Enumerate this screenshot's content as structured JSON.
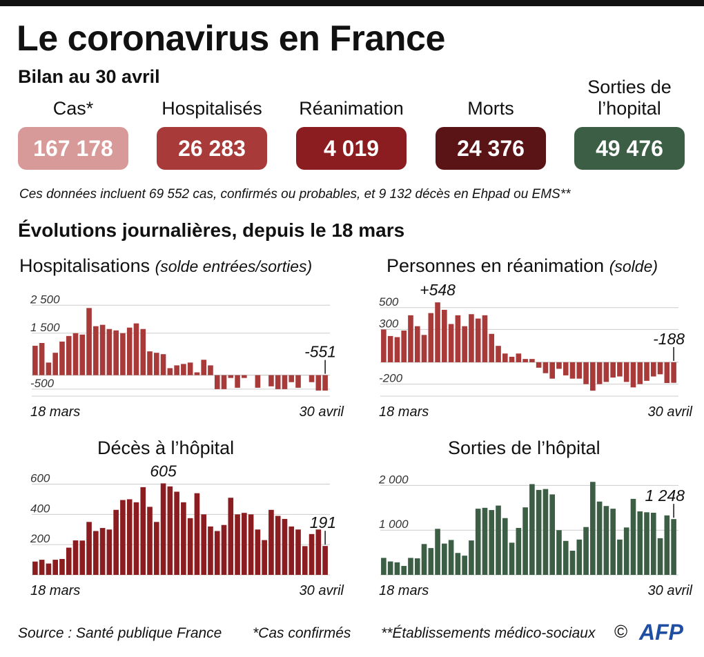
{
  "title": "Le coronavirus en France",
  "subtitle": "Bilan au 30 avril",
  "stats": [
    {
      "label": "Cas*",
      "value": "167 178",
      "color": "#d79a98"
    },
    {
      "label": "Hospitalisés",
      "value": "26 283",
      "color": "#a83a3a"
    },
    {
      "label": "Réanimation",
      "value": "4 019",
      "color": "#8b1c1f"
    },
    {
      "label": "Morts",
      "value": "24 376",
      "color": "#5a1416"
    },
    {
      "label": "Sorties de l’hopital",
      "value": "49 476",
      "color": "#3b5e45"
    }
  ],
  "note": "Ces données incluent 69 552 cas, confirmés ou probables, et 9 132 décès en Ehpad ou EMS**",
  "section_title": "Évolutions journalières, depuis le 18 mars",
  "footer": {
    "source": "Source : Santé publique France",
    "footnote1": "*Cas confirmés",
    "footnote2": "**Établissements médico-sociaux",
    "copyright": "©",
    "logo": "AFP"
  },
  "chart_data": [
    {
      "type": "bar",
      "title": "Hospitalisations",
      "title_note": "(solde entrées/sorties)",
      "color": "#a83a3a",
      "x_start_label": "18 mars",
      "x_end_label": "30 avril",
      "yticks": [
        2500,
        1500,
        -500
      ],
      "ytick_labels": [
        "2 500",
        "1 500",
        "-500"
      ],
      "ylim": [
        -750,
        3000
      ],
      "annotation": {
        "index": 43,
        "text": "-551"
      },
      "values": [
        1050,
        1150,
        450,
        800,
        1200,
        1400,
        1500,
        1450,
        2400,
        1750,
        1800,
        1650,
        1600,
        1500,
        1700,
        1850,
        1650,
        850,
        800,
        750,
        250,
        350,
        400,
        450,
        100,
        550,
        350,
        -500,
        -500,
        -100,
        -450,
        -100,
        0,
        -450,
        0,
        -400,
        -500,
        -500,
        -250,
        -450,
        0,
        -250,
        -550,
        -551
      ]
    },
    {
      "type": "bar",
      "title": "Personnes en réanimation",
      "title_note": "(solde)",
      "color": "#a83a3a",
      "x_start_label": "18 mars",
      "x_end_label": "30 avril",
      "yticks": [
        500,
        300,
        -200
      ],
      "ytick_labels": [
        "500",
        "300",
        "-200"
      ],
      "ylim": [
        -310,
        650
      ],
      "annotation_max": {
        "index": 8,
        "text": "+548"
      },
      "annotation": {
        "index": 43,
        "text": "-188"
      },
      "values": [
        300,
        240,
        230,
        290,
        430,
        330,
        250,
        450,
        548,
        480,
        350,
        430,
        330,
        440,
        400,
        430,
        260,
        150,
        80,
        50,
        80,
        30,
        30,
        -50,
        -100,
        -150,
        -60,
        -120,
        -150,
        -150,
        -200,
        -260,
        -200,
        -180,
        -140,
        -130,
        -180,
        -230,
        -200,
        -170,
        -130,
        -110,
        -190,
        -188
      ]
    },
    {
      "type": "bar",
      "title": "Décès à l’hôpital",
      "title_note": "",
      "color": "#8b1c1f",
      "x_start_label": "18 mars",
      "x_end_label": "30 avril",
      "yticks": [
        600,
        400,
        200
      ],
      "ytick_labels": [
        "600",
        "400",
        "200"
      ],
      "ylim": [
        0,
        680
      ],
      "annotation_max": {
        "index": 19,
        "text": "605"
      },
      "annotation": {
        "index": 43,
        "text": "191"
      },
      "values": [
        88,
        100,
        75,
        100,
        105,
        180,
        228,
        227,
        350,
        290,
        310,
        300,
        430,
        495,
        500,
        480,
        580,
        450,
        350,
        605,
        585,
        550,
        480,
        375,
        540,
        400,
        320,
        290,
        330,
        510,
        400,
        410,
        400,
        300,
        230,
        430,
        390,
        370,
        320,
        300,
        190,
        270,
        300,
        191
      ]
    },
    {
      "type": "bar",
      "title": "Sorties de l’hôpital",
      "title_note": "",
      "color": "#3b5e45",
      "x_start_label": "18 mars",
      "x_end_label": "30 avril",
      "yticks": [
        2000,
        1000
      ],
      "ytick_labels": [
        "2 000",
        "1 000"
      ],
      "ylim": [
        0,
        2300
      ],
      "annotation": {
        "index": 43,
        "text": "1 248"
      },
      "values": [
        380,
        300,
        280,
        200,
        380,
        370,
        690,
        600,
        1030,
        700,
        780,
        490,
        430,
        770,
        1480,
        1500,
        1450,
        1550,
        1270,
        720,
        1050,
        1510,
        2030,
        1900,
        1920,
        1800,
        1000,
        760,
        540,
        790,
        1070,
        2080,
        1640,
        1540,
        1480,
        790,
        1060,
        1700,
        1420,
        1400,
        1390,
        820,
        1330,
        1248
      ]
    }
  ]
}
